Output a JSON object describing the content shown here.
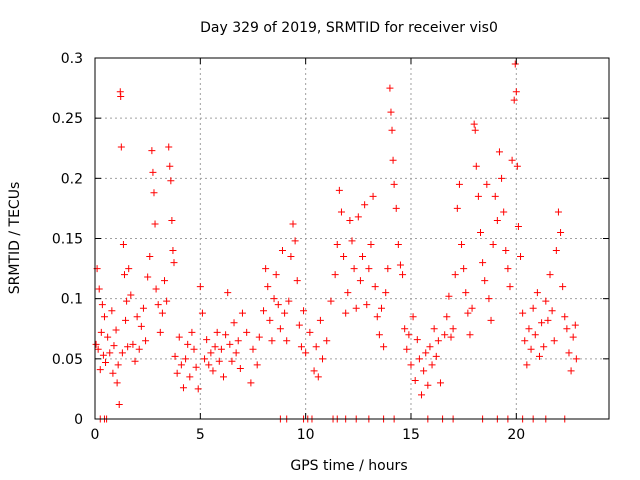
{
  "chart_data": {
    "type": "scatter",
    "title": "Day 329 of 2019, SRMTID for receiver vis0",
    "xlabel": "GPS time / hours",
    "ylabel": "SRMTID / TECUs",
    "xlim": [
      0,
      24.4
    ],
    "ylim": [
      0,
      0.3
    ],
    "x_ticks": [
      {
        "value": 0,
        "label": "0"
      },
      {
        "value": 5,
        "label": "5"
      },
      {
        "value": 10,
        "label": "10"
      },
      {
        "value": 15,
        "label": "15"
      },
      {
        "value": 20,
        "label": "20"
      }
    ],
    "y_ticks": [
      {
        "value": 0,
        "label": "0"
      },
      {
        "value": 0.05,
        "label": "0.05"
      },
      {
        "value": 0.1,
        "label": "0.1"
      },
      {
        "value": 0.15,
        "label": "0.15"
      },
      {
        "value": 0.2,
        "label": "0.2"
      },
      {
        "value": 0.25,
        "label": "0.25"
      },
      {
        "value": 0.3,
        "label": "0.3"
      }
    ],
    "grid": true,
    "marker": "+",
    "series": [
      {
        "name": "vis0",
        "color": "#ff0000",
        "points": [
          [
            0.05,
            0.062
          ],
          [
            0.1,
            0.125
          ],
          [
            0.15,
            0.058
          ],
          [
            0.2,
            0.108
          ],
          [
            0.25,
            0.041
          ],
          [
            0.3,
            0.072
          ],
          [
            0.35,
            0.095
          ],
          [
            0.4,
            0.053
          ],
          [
            0.45,
            0.085
          ],
          [
            0.5,
            0.047
          ],
          [
            0.6,
            0.068
          ],
          [
            0.7,
            0.055
          ],
          [
            0.8,
            0.09
          ],
          [
            0.85,
            0.038
          ],
          [
            0.9,
            0.061
          ],
          [
            1.0,
            0.074
          ],
          [
            1.05,
            0.03
          ],
          [
            1.1,
            0.045
          ],
          [
            1.15,
            0.012
          ],
          [
            1.2,
            0.272
          ],
          [
            1.22,
            0.268
          ],
          [
            1.25,
            0.226
          ],
          [
            1.3,
            0.055
          ],
          [
            1.35,
            0.145
          ],
          [
            1.4,
            0.12
          ],
          [
            1.45,
            0.082
          ],
          [
            1.5,
            0.098
          ],
          [
            1.55,
            0.06
          ],
          [
            1.6,
            0.125
          ],
          [
            1.7,
            0.103
          ],
          [
            1.8,
            0.062
          ],
          [
            1.9,
            0.048
          ],
          [
            2.0,
            0.085
          ],
          [
            2.1,
            0.058
          ],
          [
            2.2,
            0.077
          ],
          [
            2.3,
            0.092
          ],
          [
            2.4,
            0.065
          ],
          [
            2.5,
            0.118
          ],
          [
            2.6,
            0.135
          ],
          [
            2.7,
            0.223
          ],
          [
            2.75,
            0.205
          ],
          [
            2.8,
            0.188
          ],
          [
            2.85,
            0.162
          ],
          [
            2.9,
            0.108
          ],
          [
            3.0,
            0.095
          ],
          [
            3.1,
            0.072
          ],
          [
            3.2,
            0.088
          ],
          [
            3.3,
            0.115
          ],
          [
            3.4,
            0.098
          ],
          [
            3.5,
            0.226
          ],
          [
            3.55,
            0.21
          ],
          [
            3.6,
            0.198
          ],
          [
            3.65,
            0.165
          ],
          [
            3.7,
            0.14
          ],
          [
            3.75,
            0.13
          ],
          [
            3.8,
            0.052
          ],
          [
            3.9,
            0.038
          ],
          [
            4.0,
            0.068
          ],
          [
            4.1,
            0.045
          ],
          [
            4.2,
            0.026
          ],
          [
            4.3,
            0.05
          ],
          [
            4.4,
            0.062
          ],
          [
            4.5,
            0.035
          ],
          [
            4.6,
            0.072
          ],
          [
            4.7,
            0.058
          ],
          [
            4.8,
            0.043
          ],
          [
            4.9,
            0.025
          ],
          [
            5.0,
            0.11
          ],
          [
            5.1,
            0.088
          ],
          [
            5.2,
            0.05
          ],
          [
            5.3,
            0.066
          ],
          [
            5.4,
            0.045
          ],
          [
            5.5,
            0.055
          ],
          [
            5.6,
            0.04
          ],
          [
            5.7,
            0.06
          ],
          [
            5.8,
            0.072
          ],
          [
            5.9,
            0.048
          ],
          [
            6.0,
            0.058
          ],
          [
            6.1,
            0.035
          ],
          [
            6.2,
            0.07
          ],
          [
            6.3,
            0.105
          ],
          [
            6.4,
            0.062
          ],
          [
            6.5,
            0.048
          ],
          [
            6.6,
            0.08
          ],
          [
            6.7,
            0.055
          ],
          [
            6.8,
            0.065
          ],
          [
            6.9,
            0.042
          ],
          [
            7.0,
            0.088
          ],
          [
            7.2,
            0.072
          ],
          [
            7.4,
            0.03
          ],
          [
            7.5,
            0.058
          ],
          [
            7.7,
            0.045
          ],
          [
            7.8,
            0.068
          ],
          [
            8.0,
            0.09
          ],
          [
            8.1,
            0.125
          ],
          [
            8.2,
            0.11
          ],
          [
            8.3,
            0.082
          ],
          [
            8.4,
            0.065
          ],
          [
            8.5,
            0.1
          ],
          [
            8.6,
            0.12
          ],
          [
            8.7,
            0.095
          ],
          [
            8.8,
            0.075
          ],
          [
            8.9,
            0.14
          ],
          [
            9.0,
            0.088
          ],
          [
            9.1,
            0.065
          ],
          [
            9.2,
            0.098
          ],
          [
            9.3,
            0.135
          ],
          [
            9.4,
            0.162
          ],
          [
            9.5,
            0.148
          ],
          [
            9.6,
            0.115
          ],
          [
            9.7,
            0.078
          ],
          [
            9.8,
            0.06
          ],
          [
            9.9,
            0.09
          ],
          [
            10.0,
            0.055
          ],
          [
            10.2,
            0.072
          ],
          [
            10.4,
            0.04
          ],
          [
            10.5,
            0.06
          ],
          [
            10.6,
            0.035
          ],
          [
            10.7,
            0.082
          ],
          [
            10.8,
            0.05
          ],
          [
            11.0,
            0.065
          ],
          [
            11.2,
            0.098
          ],
          [
            11.4,
            0.12
          ],
          [
            11.5,
            0.145
          ],
          [
            11.6,
            0.19
          ],
          [
            11.7,
            0.172
          ],
          [
            11.8,
            0.135
          ],
          [
            11.9,
            0.088
          ],
          [
            12.0,
            0.105
          ],
          [
            12.1,
            0.165
          ],
          [
            12.2,
            0.148
          ],
          [
            12.3,
            0.125
          ],
          [
            12.4,
            0.092
          ],
          [
            12.5,
            0.168
          ],
          [
            12.6,
            0.115
          ],
          [
            12.7,
            0.135
          ],
          [
            12.8,
            0.178
          ],
          [
            12.9,
            0.095
          ],
          [
            13.0,
            0.125
          ],
          [
            13.1,
            0.145
          ],
          [
            13.2,
            0.185
          ],
          [
            13.3,
            0.11
          ],
          [
            13.4,
            0.085
          ],
          [
            13.5,
            0.07
          ],
          [
            13.6,
            0.092
          ],
          [
            13.7,
            0.06
          ],
          [
            13.8,
            0.105
          ],
          [
            13.9,
            0.125
          ],
          [
            14.0,
            0.275
          ],
          [
            14.05,
            0.255
          ],
          [
            14.1,
            0.24
          ],
          [
            14.15,
            0.215
          ],
          [
            14.2,
            0.195
          ],
          [
            14.3,
            0.175
          ],
          [
            14.4,
            0.145
          ],
          [
            14.5,
            0.128
          ],
          [
            14.6,
            0.12
          ],
          [
            14.7,
            0.075
          ],
          [
            14.8,
            0.058
          ],
          [
            14.9,
            0.07
          ],
          [
            15.0,
            0.045
          ],
          [
            15.1,
            0.085
          ],
          [
            15.2,
            0.032
          ],
          [
            15.3,
            0.066
          ],
          [
            15.4,
            0.05
          ],
          [
            15.5,
            0.02
          ],
          [
            15.6,
            0.04
          ],
          [
            15.7,
            0.055
          ],
          [
            15.8,
            0.028
          ],
          [
            15.9,
            0.06
          ],
          [
            16.0,
            0.045
          ],
          [
            16.1,
            0.075
          ],
          [
            16.2,
            0.052
          ],
          [
            16.3,
            0.065
          ],
          [
            16.4,
            0.03
          ],
          [
            16.6,
            0.07
          ],
          [
            16.7,
            0.085
          ],
          [
            16.8,
            0.102
          ],
          [
            16.9,
            0.068
          ],
          [
            17.0,
            0.075
          ],
          [
            17.1,
            0.12
          ],
          [
            17.2,
            0.175
          ],
          [
            17.3,
            0.195
          ],
          [
            17.4,
            0.145
          ],
          [
            17.5,
            0.125
          ],
          [
            17.6,
            0.105
          ],
          [
            17.7,
            0.088
          ],
          [
            17.8,
            0.07
          ],
          [
            17.9,
            0.092
          ],
          [
            18.0,
            0.245
          ],
          [
            18.05,
            0.24
          ],
          [
            18.1,
            0.21
          ],
          [
            18.2,
            0.185
          ],
          [
            18.3,
            0.155
          ],
          [
            18.4,
            0.13
          ],
          [
            18.5,
            0.115
          ],
          [
            18.6,
            0.195
          ],
          [
            18.7,
            0.1
          ],
          [
            18.8,
            0.082
          ],
          [
            18.9,
            0.145
          ],
          [
            19.0,
            0.185
          ],
          [
            19.1,
            0.165
          ],
          [
            19.2,
            0.222
          ],
          [
            19.3,
            0.2
          ],
          [
            19.4,
            0.172
          ],
          [
            19.5,
            0.14
          ],
          [
            19.6,
            0.125
          ],
          [
            19.7,
            0.11
          ],
          [
            19.8,
            0.215
          ],
          [
            19.9,
            0.265
          ],
          [
            19.95,
            0.295
          ],
          [
            20.0,
            0.272
          ],
          [
            20.05,
            0.21
          ],
          [
            20.1,
            0.16
          ],
          [
            20.2,
            0.135
          ],
          [
            20.3,
            0.088
          ],
          [
            20.4,
            0.065
          ],
          [
            20.5,
            0.045
          ],
          [
            20.6,
            0.075
          ],
          [
            20.7,
            0.058
          ],
          [
            20.8,
            0.092
          ],
          [
            20.9,
            0.07
          ],
          [
            21.0,
            0.105
          ],
          [
            21.1,
            0.052
          ],
          [
            21.2,
            0.08
          ],
          [
            21.3,
            0.06
          ],
          [
            21.4,
            0.098
          ],
          [
            21.5,
            0.082
          ],
          [
            21.6,
            0.12
          ],
          [
            21.7,
            0.09
          ],
          [
            21.8,
            0.065
          ],
          [
            21.9,
            0.14
          ],
          [
            22.0,
            0.172
          ],
          [
            22.1,
            0.155
          ],
          [
            22.2,
            0.11
          ],
          [
            22.3,
            0.085
          ],
          [
            22.4,
            0.075
          ],
          [
            22.5,
            0.055
          ],
          [
            22.6,
            0.04
          ],
          [
            22.7,
            0.068
          ],
          [
            22.8,
            0.078
          ],
          [
            22.85,
            0.05
          ],
          [
            0.25,
            0
          ],
          [
            0.45,
            0
          ],
          [
            0.55,
            0
          ],
          [
            8.8,
            0
          ],
          [
            9.1,
            0
          ],
          [
            9.9,
            0
          ],
          [
            10.1,
            0
          ],
          [
            10.3,
            0
          ],
          [
            11.3,
            0
          ],
          [
            11.5,
            0
          ],
          [
            11.9,
            0
          ],
          [
            12.4,
            0
          ],
          [
            13.0,
            0
          ],
          [
            13.7,
            0
          ],
          [
            14.2,
            0
          ],
          [
            15.8,
            0
          ],
          [
            16.5,
            0
          ],
          [
            17.0,
            0
          ],
          [
            18.4,
            0
          ],
          [
            19.1,
            0
          ],
          [
            19.6,
            0
          ],
          [
            20.3,
            0
          ],
          [
            20.8,
            0
          ],
          [
            21.4,
            0
          ],
          [
            22.3,
            0
          ]
        ]
      }
    ]
  }
}
